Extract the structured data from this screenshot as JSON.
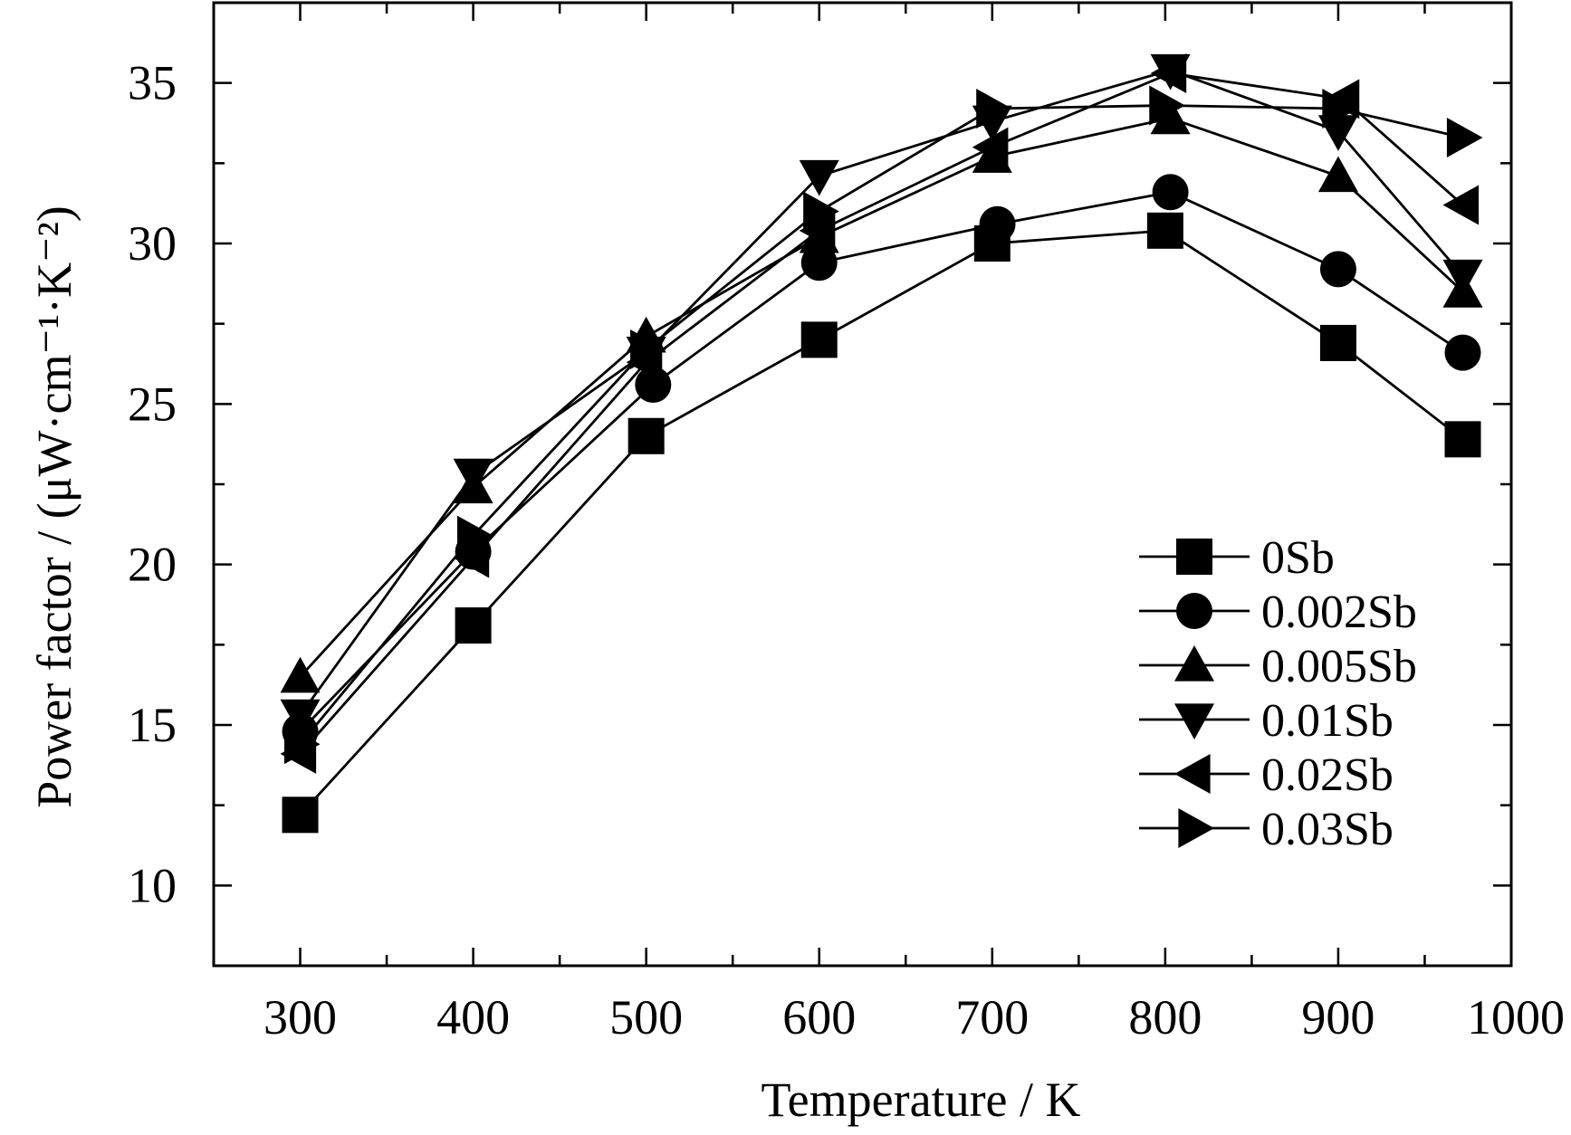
{
  "chart_data": {
    "type": "line",
    "xlabel": "Temperature / K",
    "ylabel": "Power factor / (μW·cm⁻¹·K⁻²)",
    "xlim": [
      250,
      1000
    ],
    "ylim": [
      7.5,
      37.5
    ],
    "x_ticks": [
      "300",
      "400",
      "500",
      "600",
      "700",
      "800",
      "900",
      "1000"
    ],
    "y_ticks": [
      "10",
      "15",
      "20",
      "25",
      "30",
      "35"
    ],
    "legend_position": "center-right",
    "grid": false,
    "series": [
      {
        "name": "0Sb",
        "marker": "square",
        "points": [
          [
            300,
            12.2
          ],
          [
            400,
            18.1
          ],
          [
            500,
            24.0
          ],
          [
            600,
            27.0
          ],
          [
            700,
            30.0
          ],
          [
            800,
            30.4
          ],
          [
            900,
            26.9
          ],
          [
            972,
            23.9
          ]
        ]
      },
      {
        "name": "0.002Sb",
        "marker": "circle",
        "points": [
          [
            300,
            14.8
          ],
          [
            400,
            20.4
          ],
          [
            504,
            25.6
          ],
          [
            600,
            29.4
          ],
          [
            703,
            30.6
          ],
          [
            803,
            31.6
          ],
          [
            900,
            29.2
          ],
          [
            972,
            26.6
          ]
        ]
      },
      {
        "name": "0.005Sb",
        "marker": "triangle-up",
        "points": [
          [
            300,
            16.5
          ],
          [
            400,
            22.4
          ],
          [
            500,
            27.1
          ],
          [
            600,
            30.2
          ],
          [
            700,
            32.7
          ],
          [
            803,
            33.9
          ],
          [
            900,
            32.1
          ],
          [
            972,
            28.5
          ]
        ]
      },
      {
        "name": "0.01Sb",
        "marker": "triangle-down",
        "points": [
          [
            300,
            15.3
          ],
          [
            400,
            22.8
          ],
          [
            500,
            26.6
          ],
          [
            600,
            32.1
          ],
          [
            700,
            33.8
          ],
          [
            803,
            35.4
          ],
          [
            900,
            33.5
          ],
          [
            972,
            29.0
          ]
        ]
      },
      {
        "name": "0.02Sb",
        "marker": "triangle-left",
        "points": [
          [
            300,
            14.1
          ],
          [
            400,
            20.2
          ],
          [
            500,
            26.3
          ],
          [
            600,
            30.4
          ],
          [
            700,
            33.0
          ],
          [
            803,
            35.3
          ],
          [
            903,
            34.5
          ],
          [
            972,
            31.2
          ]
        ]
      },
      {
        "name": "0.03Sb",
        "marker": "triangle-right",
        "points": [
          [
            300,
            14.4
          ],
          [
            400,
            20.9
          ],
          [
            500,
            26.7
          ],
          [
            600,
            31.0
          ],
          [
            700,
            34.2
          ],
          [
            800,
            34.3
          ],
          [
            900,
            34.2
          ],
          [
            972,
            33.3
          ]
        ]
      }
    ]
  }
}
